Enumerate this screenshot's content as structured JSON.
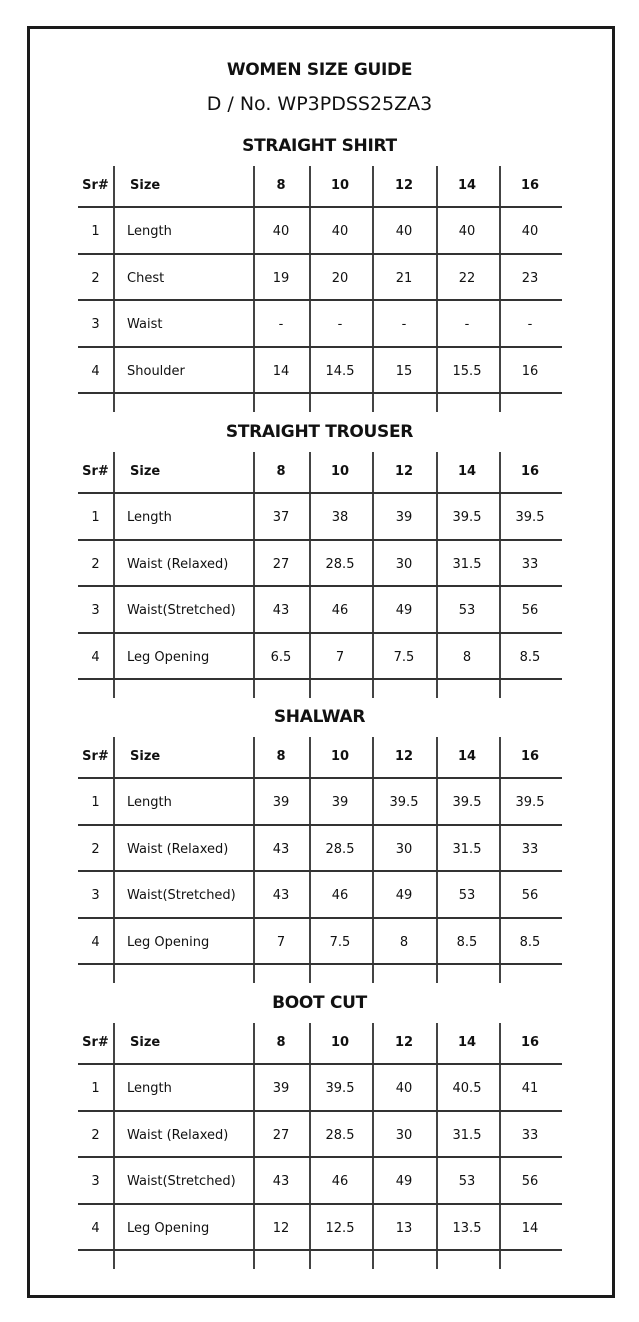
{
  "title": "WOMEN SIZE GUIDE",
  "design_no": "D / No. WP3PDSS25ZA3",
  "columns": {
    "sr": "Sr#",
    "size": "Size",
    "sizes": [
      "8",
      "10",
      "12",
      "14",
      "16"
    ]
  },
  "sections": [
    {
      "title": "STRAIGHT SHIRT",
      "rows": [
        {
          "sr": "1",
          "label": "Length",
          "values": [
            "40",
            "40",
            "40",
            "40",
            "40"
          ]
        },
        {
          "sr": "2",
          "label": "Chest",
          "values": [
            "19",
            "20",
            "21",
            "22",
            "23"
          ]
        },
        {
          "sr": "3",
          "label": "Waist",
          "values": [
            "-",
            "-",
            "-",
            "-",
            "-"
          ]
        },
        {
          "sr": "4",
          "label": "Shoulder",
          "values": [
            "14",
            "14.5",
            "15",
            "15.5",
            "16"
          ]
        }
      ]
    },
    {
      "title": "STRAIGHT TROUSER",
      "rows": [
        {
          "sr": "1",
          "label": "Length",
          "values": [
            "37",
            "38",
            "39",
            "39.5",
            "39.5"
          ]
        },
        {
          "sr": "2",
          "label": "Waist (Relaxed)",
          "values": [
            "27",
            "28.5",
            "30",
            "31.5",
            "33"
          ]
        },
        {
          "sr": "3",
          "label": "Waist(Stretched)",
          "values": [
            "43",
            "46",
            "49",
            "53",
            "56"
          ]
        },
        {
          "sr": "4",
          "label": "Leg Opening",
          "values": [
            "6.5",
            "7",
            "7.5",
            "8",
            "8.5"
          ]
        }
      ]
    },
    {
      "title": "SHALWAR",
      "rows": [
        {
          "sr": "1",
          "label": "Length",
          "values": [
            "39",
            "39",
            "39.5",
            "39.5",
            "39.5"
          ]
        },
        {
          "sr": "2",
          "label": "Waist (Relaxed)",
          "values": [
            "43",
            "28.5",
            "30",
            "31.5",
            "33"
          ]
        },
        {
          "sr": "3",
          "label": "Waist(Stretched)",
          "values": [
            "43",
            "46",
            "49",
            "53",
            "56"
          ]
        },
        {
          "sr": "4",
          "label": "Leg Opening",
          "values": [
            "7",
            "7.5",
            "8",
            "8.5",
            "8.5"
          ]
        }
      ]
    },
    {
      "title": "BOOT CUT",
      "rows": [
        {
          "sr": "1",
          "label": "Length",
          "values": [
            "39",
            "39.5",
            "40",
            "40.5",
            "41"
          ]
        },
        {
          "sr": "2",
          "label": "Waist (Relaxed)",
          "values": [
            "27",
            "28.5",
            "30",
            "31.5",
            "33"
          ]
        },
        {
          "sr": "3",
          "label": "Waist(Stretched)",
          "values": [
            "43",
            "46",
            "49",
            "53",
            "56"
          ]
        },
        {
          "sr": "4",
          "label": "Leg Opening",
          "values": [
            "12",
            "12.5",
            "13",
            "13.5",
            "14"
          ]
        }
      ]
    }
  ]
}
